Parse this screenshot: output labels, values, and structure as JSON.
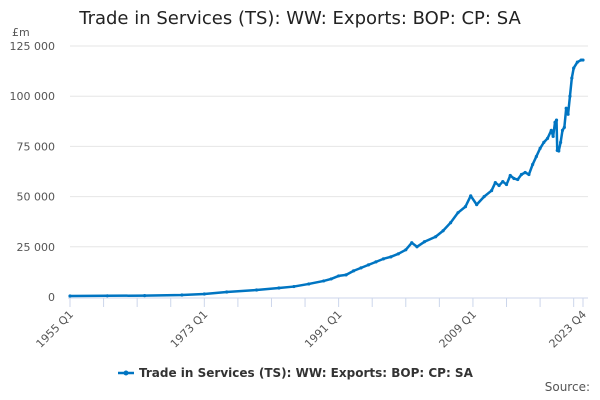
{
  "chart_data": {
    "type": "line",
    "title": "Trade in Services (TS): WW: Exports: BOP: CP: SA",
    "ylabel": "£m",
    "xlabel": "",
    "ylim": [
      0,
      125000
    ],
    "xlim": [
      1955.0,
      2023.75
    ],
    "yticks": [
      0,
      25000,
      50000,
      75000,
      100000,
      125000
    ],
    "ytick_labels": [
      "0",
      "25 000",
      "50 000",
      "75 000",
      "100 000",
      "125 000"
    ],
    "xticks": [
      1955.0,
      1973.0,
      1991.0,
      2009.0,
      2023.75
    ],
    "xtick_labels": [
      "1955 Q1",
      "1973 Q1",
      "1991 Q1",
      "2009 Q1",
      "2023 Q4"
    ],
    "grid": "horizontal",
    "legend_position": "bottom",
    "color": "#0075c2",
    "series": [
      {
        "name": "Trade in Services (TS): WW: Exports: BOP: CP: SA",
        "points": [
          [
            1955.0,
            500
          ],
          [
            1960,
            600
          ],
          [
            1965,
            700
          ],
          [
            1970,
            1000
          ],
          [
            1973,
            1500
          ],
          [
            1976,
            2500
          ],
          [
            1980,
            3500
          ],
          [
            1983,
            4500
          ],
          [
            1985,
            5200
          ],
          [
            1987,
            6500
          ],
          [
            1989,
            8000
          ],
          [
            1990,
            9000
          ],
          [
            1991,
            10500
          ],
          [
            1992,
            11000
          ],
          [
            1993,
            13000
          ],
          [
            1994,
            14500
          ],
          [
            1995,
            16000
          ],
          [
            1996,
            17500
          ],
          [
            1997,
            19000
          ],
          [
            1998,
            20000
          ],
          [
            1999,
            21500
          ],
          [
            2000,
            23500
          ],
          [
            2000.8,
            27000
          ],
          [
            2001.5,
            25000
          ],
          [
            2002.5,
            27500
          ],
          [
            2004,
            30000
          ],
          [
            2005,
            33000
          ],
          [
            2006,
            37000
          ],
          [
            2007,
            42000
          ],
          [
            2008,
            45000
          ],
          [
            2008.7,
            50400
          ],
          [
            2009.5,
            46000
          ],
          [
            2010.5,
            50000
          ],
          [
            2011.5,
            53000
          ],
          [
            2012,
            57000
          ],
          [
            2012.5,
            55500
          ],
          [
            2013,
            57500
          ],
          [
            2013.5,
            56000
          ],
          [
            2014,
            60500
          ],
          [
            2014.5,
            59000
          ],
          [
            2015,
            58500
          ],
          [
            2015.5,
            61000
          ],
          [
            2016,
            62000
          ],
          [
            2016.5,
            61000
          ],
          [
            2017,
            66000
          ],
          [
            2017.5,
            70000
          ],
          [
            2018,
            74000
          ],
          [
            2018.5,
            77000
          ],
          [
            2019,
            79000
          ],
          [
            2019.5,
            83000
          ],
          [
            2019.75,
            80000
          ],
          [
            2020.0,
            87000
          ],
          [
            2020.2,
            88100
          ],
          [
            2020.3,
            73000
          ],
          [
            2020.5,
            72700
          ],
          [
            2020.75,
            77000
          ],
          [
            2021,
            83000
          ],
          [
            2021.25,
            84500
          ],
          [
            2021.5,
            94000
          ],
          [
            2021.75,
            91000
          ],
          [
            2022,
            100000
          ],
          [
            2022.25,
            109000
          ],
          [
            2022.5,
            114000
          ],
          [
            2023,
            117000
          ],
          [
            2023.5,
            118000
          ],
          [
            2023.75,
            118000
          ]
        ]
      }
    ]
  },
  "source_label": "Source:"
}
